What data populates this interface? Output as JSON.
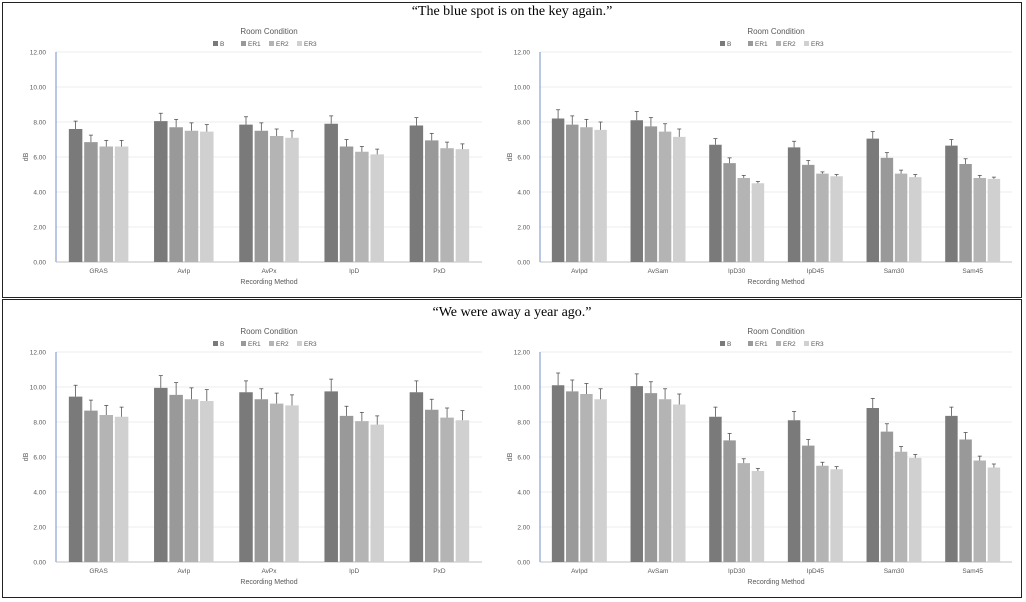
{
  "quotes": [
    "“The blue spot is on the key again.”",
    "“We were away a year ago.”"
  ],
  "colors": {
    "B": "#7a7a7a",
    "ER1": "#999999",
    "ER2": "#b4b4b4",
    "ER3": "#d0d0d0",
    "axis": "#6f8fc9",
    "grid": "#e6e6e6",
    "error": "#555555"
  },
  "chart_data": [
    {
      "type": "bar",
      "title": "Room Condition",
      "xlabel": "Recording Method",
      "ylabel": "dB",
      "ylim": [
        0,
        12
      ],
      "yticks": [
        "0.00",
        "2.00",
        "4.00",
        "6.00",
        "8.00",
        "10.00",
        "12.00"
      ],
      "legend_position": "top-center",
      "categories": [
        "GRAS",
        "AvIp",
        "AvPx",
        "IpD",
        "PxD"
      ],
      "series": [
        {
          "name": "B",
          "values": [
            7.6,
            8.05,
            7.85,
            7.9,
            7.8
          ],
          "errors": [
            0.45,
            0.45,
            0.45,
            0.45,
            0.45
          ]
        },
        {
          "name": "ER1",
          "values": [
            6.85,
            7.7,
            7.5,
            6.6,
            6.95
          ],
          "errors": [
            0.4,
            0.45,
            0.45,
            0.4,
            0.4
          ]
        },
        {
          "name": "ER2",
          "values": [
            6.6,
            7.5,
            7.2,
            6.3,
            6.5
          ],
          "errors": [
            0.35,
            0.45,
            0.4,
            0.3,
            0.35
          ]
        },
        {
          "name": "ER3",
          "values": [
            6.6,
            7.45,
            7.1,
            6.15,
            6.45
          ],
          "errors": [
            0.35,
            0.4,
            0.4,
            0.3,
            0.3
          ]
        }
      ]
    },
    {
      "type": "bar",
      "title": "Room Condition",
      "xlabel": "Recording Method",
      "ylabel": "dB",
      "ylim": [
        0,
        12
      ],
      "yticks": [
        "0.00",
        "2.00",
        "4.00",
        "6.00",
        "8.00",
        "10.00",
        "12.00"
      ],
      "legend_position": "top-center",
      "categories": [
        "AvIpd",
        "AvSam",
        "IpD30",
        "IpD45",
        "Sam30",
        "Sam45"
      ],
      "series": [
        {
          "name": "B",
          "values": [
            8.2,
            8.1,
            6.7,
            6.55,
            7.05,
            6.65
          ],
          "errors": [
            0.5,
            0.5,
            0.35,
            0.35,
            0.4,
            0.35
          ]
        },
        {
          "name": "ER1",
          "values": [
            7.85,
            7.75,
            5.65,
            5.55,
            5.95,
            5.6
          ],
          "errors": [
            0.5,
            0.5,
            0.3,
            0.25,
            0.3,
            0.3
          ]
        },
        {
          "name": "ER2",
          "values": [
            7.7,
            7.45,
            4.8,
            5.05,
            5.05,
            4.8
          ],
          "errors": [
            0.45,
            0.45,
            0.15,
            0.1,
            0.2,
            0.15
          ]
        },
        {
          "name": "ER3",
          "values": [
            7.55,
            7.15,
            4.5,
            4.9,
            4.85,
            4.75
          ],
          "errors": [
            0.45,
            0.45,
            0.1,
            0.1,
            0.15,
            0.1
          ]
        }
      ]
    },
    {
      "type": "bar",
      "title": "Room Condition",
      "xlabel": "Recording Method",
      "ylabel": "dB",
      "ylim": [
        0,
        12
      ],
      "yticks": [
        "0.00",
        "2.00",
        "4.00",
        "6.00",
        "8.00",
        "10.00",
        "12.00"
      ],
      "legend_position": "top-center",
      "categories": [
        "GRAS",
        "AvIp",
        "AvPx",
        "IpD",
        "PxD"
      ],
      "series": [
        {
          "name": "B",
          "values": [
            9.45,
            9.95,
            9.7,
            9.75,
            9.7
          ],
          "errors": [
            0.65,
            0.7,
            0.65,
            0.7,
            0.65
          ]
        },
        {
          "name": "ER1",
          "values": [
            8.65,
            9.55,
            9.3,
            8.35,
            8.7
          ],
          "errors": [
            0.6,
            0.7,
            0.6,
            0.55,
            0.6
          ]
        },
        {
          "name": "ER2",
          "values": [
            8.4,
            9.3,
            9.05,
            8.05,
            8.25
          ],
          "errors": [
            0.55,
            0.65,
            0.6,
            0.5,
            0.55
          ]
        },
        {
          "name": "ER3",
          "values": [
            8.3,
            9.2,
            8.95,
            7.85,
            8.1
          ],
          "errors": [
            0.55,
            0.65,
            0.6,
            0.5,
            0.55
          ]
        }
      ]
    },
    {
      "type": "bar",
      "title": "Room Condition",
      "xlabel": "Recording Method",
      "ylabel": "dB",
      "ylim": [
        0,
        12
      ],
      "yticks": [
        "0.00",
        "2.00",
        "4.00",
        "6.00",
        "8.00",
        "10.00",
        "12.00"
      ],
      "legend_position": "top-center",
      "categories": [
        "AvIpd",
        "AvSam",
        "IpD30",
        "IpD45",
        "Sam30",
        "Sam45"
      ],
      "series": [
        {
          "name": "B",
          "values": [
            10.1,
            10.05,
            8.3,
            8.1,
            8.8,
            8.35
          ],
          "errors": [
            0.7,
            0.7,
            0.55,
            0.5,
            0.55,
            0.5
          ]
        },
        {
          "name": "ER1",
          "values": [
            9.75,
            9.65,
            6.95,
            6.65,
            7.45,
            7.0
          ],
          "errors": [
            0.65,
            0.65,
            0.4,
            0.35,
            0.45,
            0.4
          ]
        },
        {
          "name": "ER2",
          "values": [
            9.6,
            9.3,
            5.65,
            5.5,
            6.3,
            5.8
          ],
          "errors": [
            0.6,
            0.6,
            0.25,
            0.2,
            0.3,
            0.25
          ]
        },
        {
          "name": "ER3",
          "values": [
            9.3,
            9.0,
            5.2,
            5.3,
            5.95,
            5.4
          ],
          "errors": [
            0.6,
            0.6,
            0.15,
            0.15,
            0.2,
            0.2
          ]
        }
      ]
    }
  ]
}
